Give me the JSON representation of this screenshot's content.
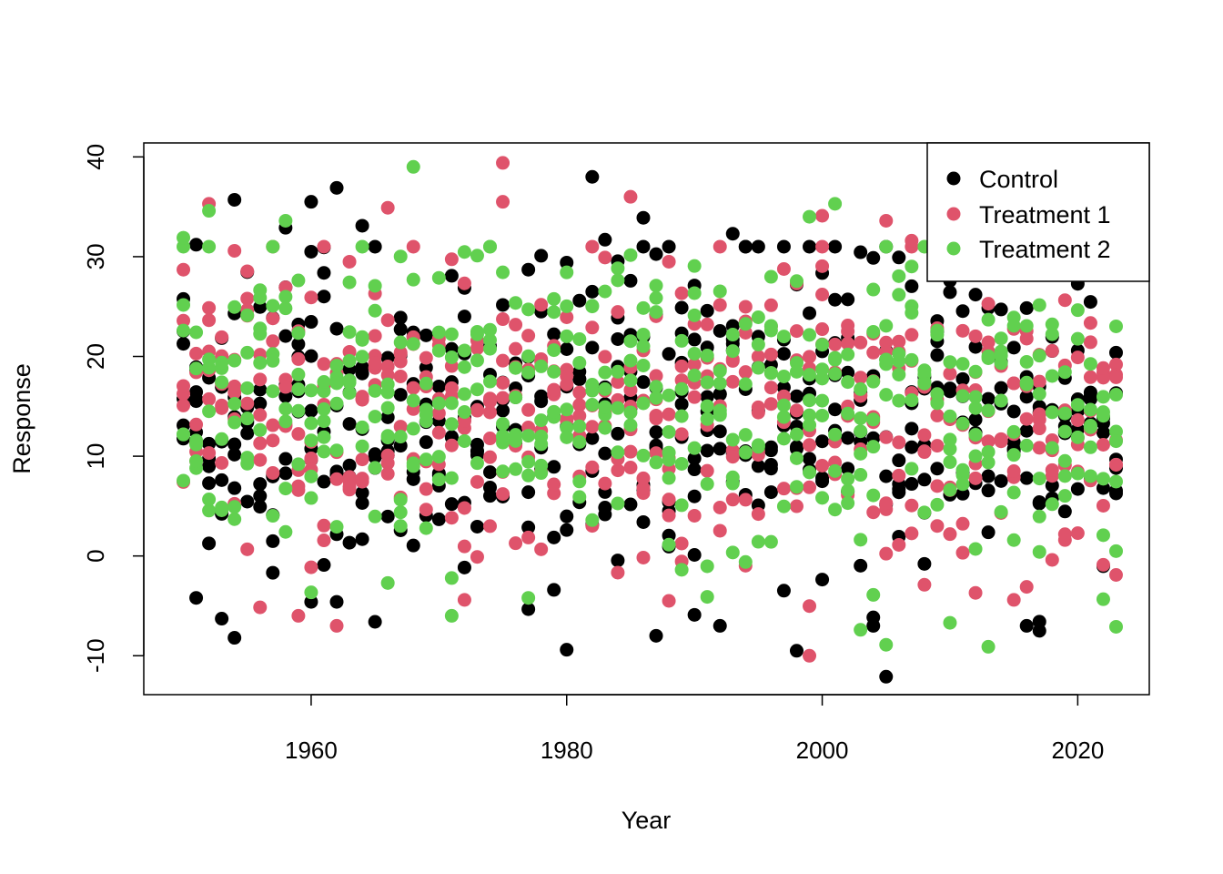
{
  "chart_data": {
    "type": "scatter",
    "title": "",
    "xlabel": "Year",
    "ylabel": "Response",
    "xlim": [
      1946.9,
      2025.6
    ],
    "ylim": [
      -13.9,
      41.4
    ],
    "x_ticks": [
      1960,
      1980,
      2000,
      2020
    ],
    "y_ticks": [
      -10,
      0,
      10,
      20,
      30,
      40
    ],
    "x_tick_labels": [
      "1960",
      "1980",
      "2000",
      "2020"
    ],
    "y_tick_labels": [
      "-10",
      "0",
      "10",
      "20",
      "30",
      "40"
    ],
    "grid": false,
    "legend_position": "top-right",
    "x_range": [
      1950,
      2023
    ],
    "points_per_series_per_year": 6,
    "series": [
      {
        "name": "Control",
        "color": "#000000",
        "outliers": [
          {
            "x": 1954,
            "y": 35.7
          },
          {
            "x": 1960,
            "y": 35.5
          },
          {
            "x": 1962,
            "y": 36.9
          },
          {
            "x": 1982,
            "y": 38.0
          },
          {
            "x": 1954,
            "y": -8.2
          },
          {
            "x": 1980,
            "y": -9.4
          },
          {
            "x": 1987,
            "y": -8.0
          },
          {
            "x": 1998,
            "y": -9.5
          },
          {
            "x": 2005,
            "y": -12.1
          },
          {
            "x": 2017,
            "y": -7.5
          },
          {
            "x": 1965,
            "y": -6.6
          },
          {
            "x": 1990,
            "y": -5.9
          },
          {
            "x": 1951,
            "y": -4.2
          },
          {
            "x": 1960,
            "y": -4.6
          },
          {
            "x": 1962,
            "y": -4.6
          },
          {
            "x": 1993,
            "y": 32.3
          },
          {
            "x": 1986,
            "y": 33.9
          },
          {
            "x": 1983,
            "y": 31.7
          },
          {
            "x": 1964,
            "y": 33.1
          },
          {
            "x": 1958,
            "y": 32.9
          },
          {
            "x": 1951,
            "y": 31.2
          }
        ]
      },
      {
        "name": "Treatment 1",
        "color": "#DF536B",
        "outliers": [
          {
            "x": 1975,
            "y": 39.4
          },
          {
            "x": 1975,
            "y": 35.5
          },
          {
            "x": 1985,
            "y": 36.0
          },
          {
            "x": 1952,
            "y": 35.3
          },
          {
            "x": 1966,
            "y": 34.9
          },
          {
            "x": 2000,
            "y": 34.1
          },
          {
            "x": 2005,
            "y": 33.6
          },
          {
            "x": 1999,
            "y": -10.0
          },
          {
            "x": 1959,
            "y": -6.0
          },
          {
            "x": 1988,
            "y": -4.5
          },
          {
            "x": 2015,
            "y": -4.4
          },
          {
            "x": 2023,
            "y": -1.9
          },
          {
            "x": 1972,
            "y": -4.4
          },
          {
            "x": 2012,
            "y": -3.7
          },
          {
            "x": 2007,
            "y": 31.6
          }
        ]
      },
      {
        "name": "Treatment 2",
        "color": "#61D04F",
        "outliers": [
          {
            "x": 1968,
            "y": 39.0
          },
          {
            "x": 2001,
            "y": 35.3
          },
          {
            "x": 1952,
            "y": 34.6
          },
          {
            "x": 1999,
            "y": 34.0
          },
          {
            "x": 1958,
            "y": 33.6
          },
          {
            "x": 2005,
            "y": -8.9
          },
          {
            "x": 2013,
            "y": -9.1
          },
          {
            "x": 2003,
            "y": -7.4
          },
          {
            "x": 2023,
            "y": -7.1
          },
          {
            "x": 2010,
            "y": -6.7
          },
          {
            "x": 1971,
            "y": -6.0
          },
          {
            "x": 2004,
            "y": -3.9
          },
          {
            "x": 1991,
            "y": -4.1
          },
          {
            "x": 1977,
            "y": -4.2
          },
          {
            "x": 1950,
            "y": 31.9
          }
        ]
      }
    ]
  }
}
